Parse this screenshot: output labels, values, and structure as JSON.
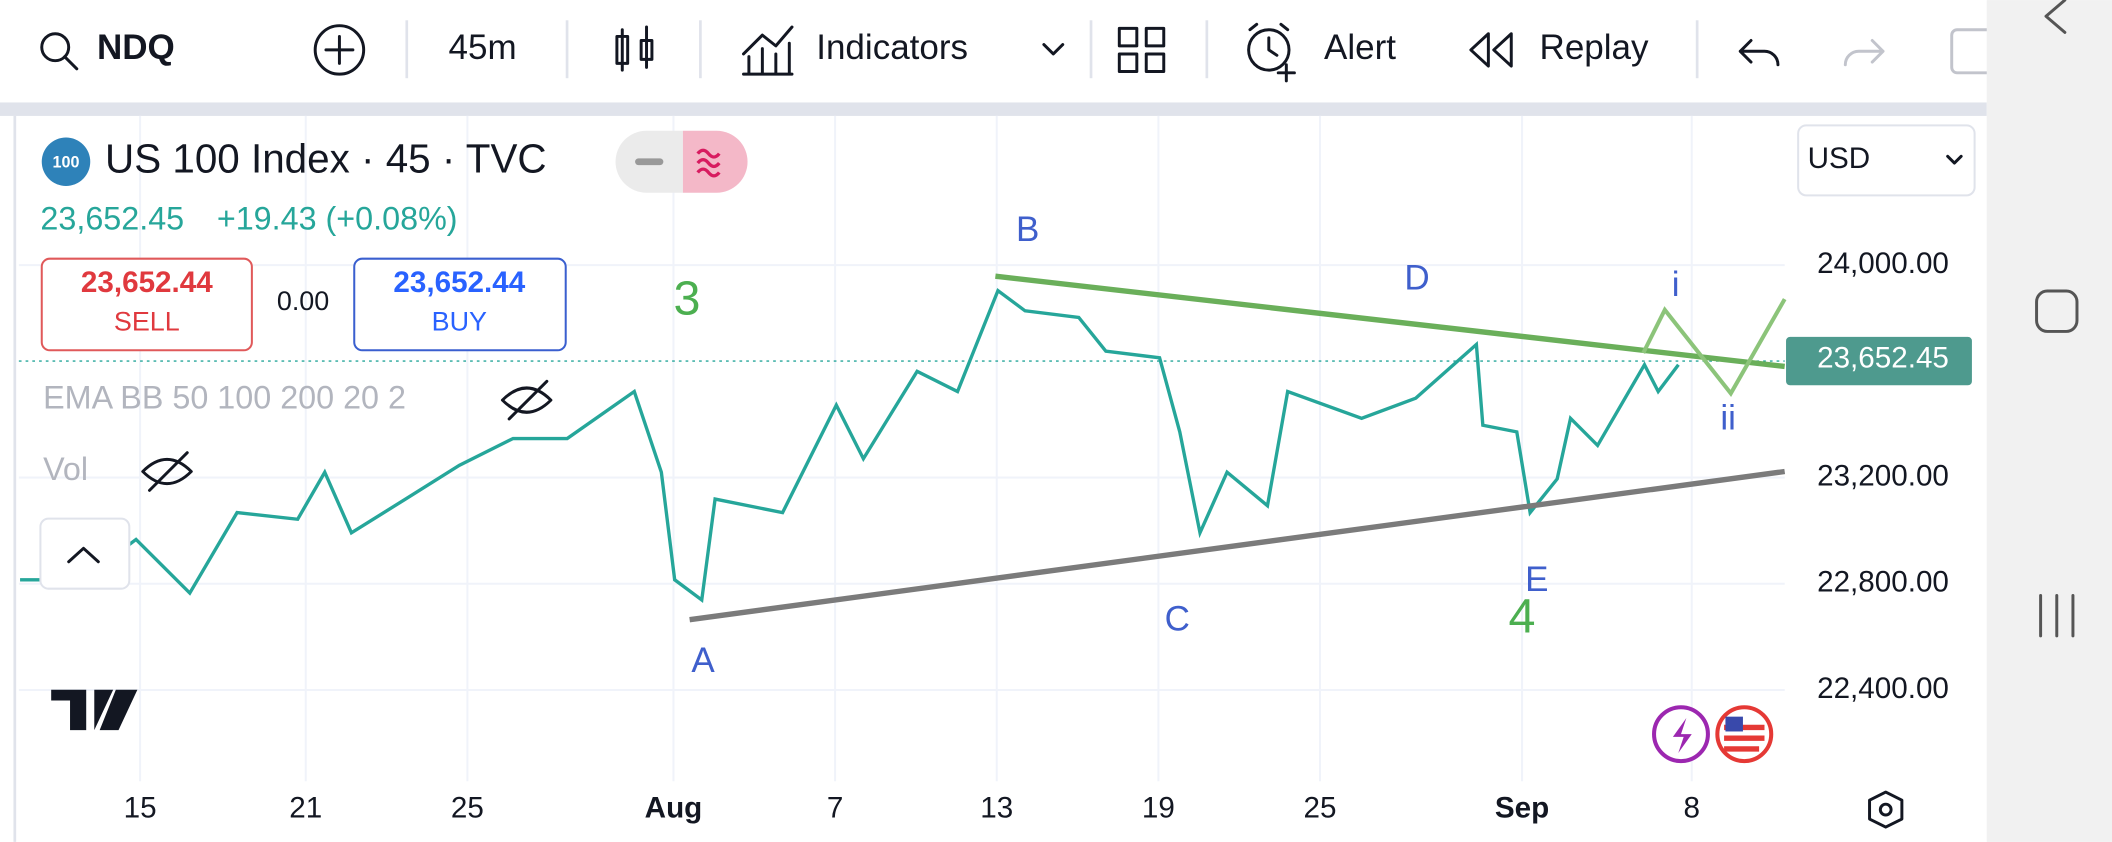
{
  "toolbar": {
    "symbol": "NDQ",
    "interval": "45m",
    "indicators": "Indicators",
    "alert": "Alert",
    "replay": "Replay"
  },
  "legend": {
    "badge": "100",
    "title": "US 100 Index · 45 · TVC",
    "price": "23,652.45",
    "change": "+19.43 (+0.08%)",
    "sell_price": "23,652.44",
    "sell": "SELL",
    "spread": "0.00",
    "buy_price": "23,652.44",
    "buy": "BUY",
    "indicator": "EMA BB 50 100 200 20 2",
    "volume": "Vol"
  },
  "currency": "USD",
  "last_price_tag": "23,652.45",
  "annotations": [
    "3",
    "B",
    "D",
    "i",
    "ii",
    "A",
    "C",
    "E",
    "4"
  ],
  "chart_data": {
    "type": "line",
    "color": "#26a69a",
    "x": [
      -2.97,
      -1.43,
      -0.1,
      1.23,
      2.4,
      3.9,
      4.57,
      5.23,
      6.57,
      7.9,
      9.23,
      10.57,
      12.23,
      12.9,
      13.23,
      13.9,
      14.23,
      15.9,
      17.23,
      17.9,
      19.23,
      20.23,
      21.23,
      21.9,
      23.23,
      23.9,
      25.23,
      25.73,
      26.23,
      26.9,
      27.9,
      28.4,
      30.23,
      31.57,
      33.07,
      33.23,
      34.07,
      34.4,
      35.07,
      35.4,
      36.07,
      37.23,
      37.57,
      38.07
    ],
    "values": [
      22815,
      22815,
      22967,
      22765,
      23068,
      23043,
      23220,
      22992,
      23119,
      23246,
      23347,
      23347,
      23524,
      23220,
      22815,
      22739,
      23119,
      23068,
      23473,
      23271,
      23600,
      23524,
      23904,
      23828,
      23803,
      23676,
      23651,
      23372,
      22992,
      23220,
      23094,
      23524,
      23423,
      23499,
      23701,
      23397,
      23372,
      23068,
      23195,
      23423,
      23321,
      23625,
      23524,
      23625
    ],
    "xlim": [
      -3,
      40.7
    ],
    "xticks": [
      {
        "value": 0,
        "label": "15"
      },
      {
        "value": 4.1,
        "label": "21"
      },
      {
        "value": 8.1,
        "label": "25"
      },
      {
        "value": 13.2,
        "label": "Aug"
      },
      {
        "value": 17.2,
        "label": "7"
      },
      {
        "value": 21.2,
        "label": "13"
      },
      {
        "value": 25.2,
        "label": "19"
      },
      {
        "value": 29.2,
        "label": "25"
      },
      {
        "value": 34.2,
        "label": "Sep"
      },
      {
        "value": 38.4,
        "label": "8"
      }
    ],
    "ylim": [
      22056,
      24562
    ],
    "yticks": [
      {
        "value": 22400,
        "label": "22,400.00"
      },
      {
        "value": 22800,
        "label": "22,800.00"
      },
      {
        "value": 23200,
        "label": "23,200.00"
      },
      {
        "value": 24000,
        "label": "24,000.00"
      }
    ],
    "grid": true
  }
}
